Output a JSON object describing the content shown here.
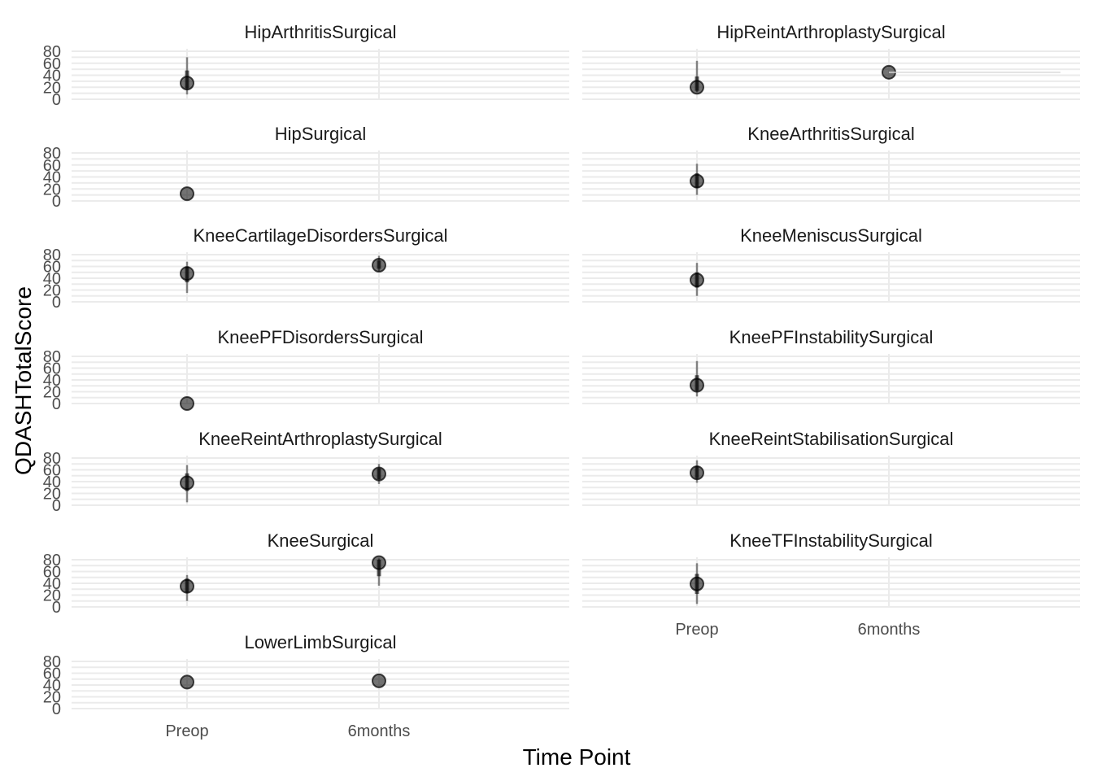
{
  "chart_data": {
    "type": "scatter",
    "xlabel": "Time Point",
    "ylabel": "QDASHTotalScore",
    "categories": [
      "Preop",
      "6months"
    ],
    "y_ticks": [
      0,
      20,
      40,
      60,
      80
    ],
    "ylim": [
      0,
      80
    ],
    "grid": true,
    "facets": [
      {
        "title": "HipArthritisSurgical",
        "points": [
          {
            "x": "Preop",
            "y": 27,
            "lo": 8,
            "hi": 70,
            "q1": 18,
            "q3": 48
          }
        ]
      },
      {
        "title": "HipReintArthroplastySurgical",
        "points": [
          {
            "x": "Preop",
            "y": 20,
            "lo": 12,
            "hi": 64,
            "q1": 14,
            "q3": 38
          },
          {
            "x": "6months",
            "y": 45
          }
        ]
      },
      {
        "title": "HipSurgical",
        "points": [
          {
            "x": "Preop",
            "y": 12
          }
        ]
      },
      {
        "title": "KneeArthritisSurgical",
        "points": [
          {
            "x": "Preop",
            "y": 33,
            "lo": 10,
            "hi": 62,
            "q1": 22,
            "q3": 46
          }
        ]
      },
      {
        "title": "KneeCartilageDisordersSurgical",
        "points": [
          {
            "x": "Preop",
            "y": 48,
            "lo": 15,
            "hi": 68,
            "q1": 33,
            "q3": 60
          },
          {
            "x": "6months",
            "y": 62,
            "lo": 52,
            "hi": 78,
            "q1": 56,
            "q3": 70
          }
        ]
      },
      {
        "title": "KneeMeniscusSurgical",
        "points": [
          {
            "x": "Preop",
            "y": 37,
            "lo": 10,
            "hi": 66,
            "q1": 24,
            "q3": 50
          }
        ]
      },
      {
        "title": "KneePFDisordersSurgical",
        "points": [
          {
            "x": "Preop",
            "y": 0
          }
        ]
      },
      {
        "title": "KneePFInstabilitySurgical",
        "points": [
          {
            "x": "Preop",
            "y": 31,
            "lo": 12,
            "hi": 72,
            "q1": 22,
            "q3": 48
          }
        ]
      },
      {
        "title": "KneeReintArthroplastySurgical",
        "points": [
          {
            "x": "Preop",
            "y": 38,
            "lo": 5,
            "hi": 68,
            "q1": 24,
            "q3": 54
          },
          {
            "x": "6months",
            "y": 53,
            "lo": 36,
            "hi": 70,
            "q1": 44,
            "q3": 62
          }
        ]
      },
      {
        "title": "KneeReintStabilisationSurgical",
        "points": [
          {
            "x": "Preop",
            "y": 55,
            "lo": 38,
            "hi": 76,
            "q1": 46,
            "q3": 66
          }
        ]
      },
      {
        "title": "KneeSurgical",
        "points": [
          {
            "x": "Preop",
            "y": 35,
            "lo": 10,
            "hi": 54,
            "q1": 24,
            "q3": 48
          },
          {
            "x": "6months",
            "y": 75,
            "lo": 36,
            "hi": 82,
            "q1": 52,
            "q3": 80
          }
        ]
      },
      {
        "title": "KneeTFInstabilitySurgical",
        "points": [
          {
            "x": "Preop",
            "y": 39,
            "lo": 5,
            "hi": 74,
            "q1": 22,
            "q3": 56
          }
        ]
      },
      {
        "title": "LowerLimbSurgical",
        "points": [
          {
            "x": "Preop",
            "y": 45
          },
          {
            "x": "6months",
            "y": 47
          }
        ]
      }
    ]
  }
}
